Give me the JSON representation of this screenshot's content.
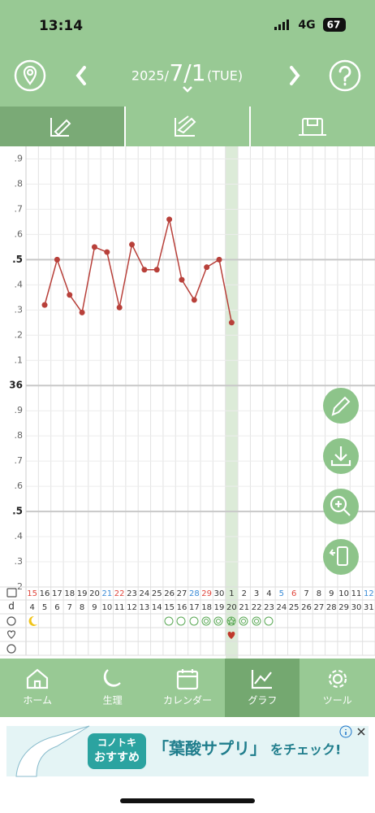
{
  "status_bar": {
    "time": "13:14",
    "network": "4G",
    "battery": "67"
  },
  "header": {
    "year": "2025/",
    "date": "7/1",
    "weekday": "(TUE)"
  },
  "chart_data": {
    "type": "line",
    "categories": [
      "15",
      "16",
      "17",
      "18",
      "19",
      "20",
      "21",
      "22",
      "23",
      "24",
      "25",
      "26",
      "27",
      "28",
      "29",
      "30",
      "1",
      "2",
      "3",
      "4",
      "5",
      "6",
      "7",
      "8",
      "9",
      "10",
      "11",
      "12"
    ],
    "category_colors": [
      "#e0463c",
      "#333333",
      "#333333",
      "#333333",
      "#333333",
      "#333333",
      "#3a8bd6",
      "#e0463c",
      "#333333",
      "#333333",
      "#333333",
      "#333333",
      "#333333",
      "#3a8bd6",
      "#e0463c",
      "#333333",
      "#333333",
      "#333333",
      "#333333",
      "#333333",
      "#3a8bd6",
      "#e0463c",
      "#333333",
      "#333333",
      "#333333",
      "#333333",
      "#333333",
      "#3a8bd6"
    ],
    "series": [
      {
        "color": "#b8403a",
        "values": [
          null,
          36.32,
          36.5,
          36.36,
          36.29,
          36.55,
          36.53,
          36.31,
          36.56,
          36.46,
          36.46,
          36.66,
          36.42,
          36.34,
          36.47,
          36.5,
          36.25,
          null,
          null,
          null,
          null,
          null,
          null,
          null,
          null,
          null,
          null,
          null
        ]
      }
    ],
    "ylim": [
      35.2,
      36.95
    ],
    "yticks": [
      {
        "value": 36.9,
        "label": ".9"
      },
      {
        "value": 36.8,
        "label": ".8"
      },
      {
        "value": 36.7,
        "label": ".7"
      },
      {
        "value": 36.6,
        "label": ".6"
      },
      {
        "value": 36.5,
        "label": ".5"
      },
      {
        "value": 36.4,
        "label": ".4"
      },
      {
        "value": 36.3,
        "label": ".3"
      },
      {
        "value": 36.2,
        "label": ".2"
      },
      {
        "value": 36.1,
        "label": ".1"
      },
      36,
      {
        "value": 35.9,
        "label": ".9"
      },
      {
        "value": 35.8,
        "label": ".8"
      },
      {
        "value": 35.7,
        "label": ".7"
      },
      {
        "value": 35.6,
        "label": ".6"
      },
      {
        "value": 35.5,
        "label": ".5"
      },
      {
        "value": 35.4,
        "label": ".4"
      },
      {
        "value": 35.3,
        "label": ".3"
      },
      {
        "value": 35.2,
        "label": ".2"
      }
    ],
    "grid": true
  },
  "cycle_days": {
    "label": "d",
    "values": [
      4,
      5,
      6,
      7,
      8,
      9,
      10,
      11,
      12,
      13,
      14,
      15,
      16,
      17,
      18,
      19,
      20,
      21,
      22,
      23,
      24,
      25,
      26,
      27,
      28,
      29,
      30,
      31
    ]
  },
  "bottom_nav": [
    "ホーム",
    "生理",
    "カレンダー",
    "グラフ",
    "ツール"
  ],
  "ad": {
    "brand": "コノトキ",
    "tag": "おすすめ",
    "product": "「葉酸サプリ」",
    "cta": "をチェック!"
  }
}
